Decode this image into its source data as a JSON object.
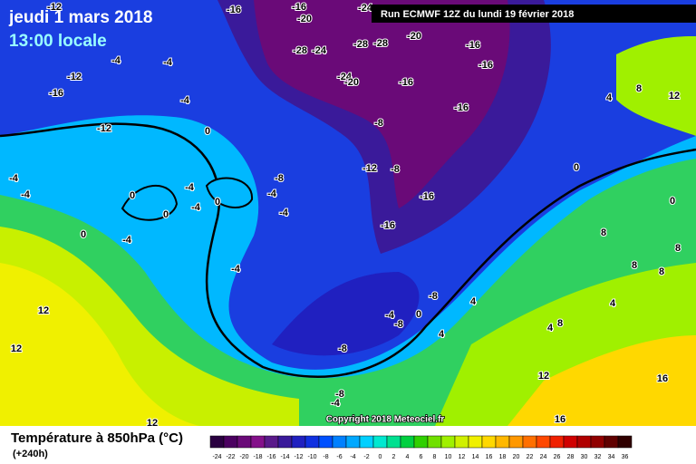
{
  "header": {
    "date": "jeudi 1 mars 2018",
    "time": "13:00 locale",
    "run": "Run ECMWF 12Z du lundi 19 février 2018",
    "copyright": "Copyright 2018 Meteociel.fr"
  },
  "footer": {
    "title": "Température à 850hPa (°C)",
    "lead": "(+240h)"
  },
  "colorbar": {
    "labels": [
      -24,
      -22,
      -20,
      -18,
      -16,
      -14,
      -12,
      -10,
      -8,
      -6,
      -4,
      -2,
      0,
      2,
      4,
      6,
      8,
      10,
      12,
      14,
      16,
      18,
      20,
      22,
      24,
      26,
      28,
      30,
      32,
      34,
      36
    ],
    "colors": [
      "#2a0040",
      "#4b0060",
      "#6a0a78",
      "#84108a",
      "#5a1a8a",
      "#3a1a9a",
      "#2020c0",
      "#1030e0",
      "#0050ff",
      "#0080ff",
      "#00a8ff",
      "#00d0ff",
      "#00e8d0",
      "#00e090",
      "#00d040",
      "#30d000",
      "#70e000",
      "#a0f000",
      "#d0f000",
      "#f0f000",
      "#ffd800",
      "#ffb800",
      "#ff9800",
      "#ff7000",
      "#ff4800",
      "#f02000",
      "#d00000",
      "#b00000",
      "#900000",
      "#600000",
      "#300000"
    ]
  },
  "map_labels": [
    -12,
    -16,
    -16,
    -20,
    -24,
    -20,
    -16,
    -16,
    -28,
    -28,
    -28,
    -24,
    -24,
    -20,
    -16,
    -16,
    -8,
    -12,
    -8,
    -16,
    -16,
    -12,
    -16,
    -12,
    -4,
    -4,
    -4,
    -4,
    -4,
    -4,
    -4,
    -4,
    -4,
    -4,
    -4,
    -8,
    0,
    0,
    0,
    0,
    0,
    0,
    0,
    4,
    8,
    12,
    8,
    8,
    8,
    8,
    4,
    4,
    8,
    12,
    12,
    12,
    12,
    16,
    16,
    -8,
    -4,
    -8,
    0,
    4,
    -8,
    -8,
    -4,
    4
  ]
}
